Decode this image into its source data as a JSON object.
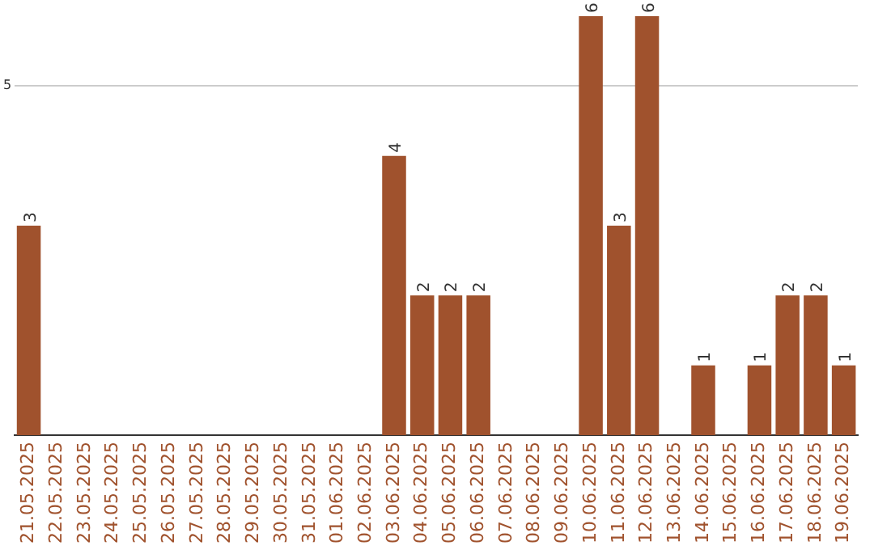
{
  "chart_data": {
    "type": "bar",
    "categories": [
      "21.05.2025",
      "22.05.2025",
      "23.05.2025",
      "24.05.2025",
      "25.05.2025",
      "26.05.2025",
      "27.05.2025",
      "28.05.2025",
      "29.05.2025",
      "30.05.2025",
      "31.05.2025",
      "01.06.2025",
      "02.06.2025",
      "03.06.2025",
      "04.06.2025",
      "05.06.2025",
      "06.06.2025",
      "07.06.2025",
      "08.06.2025",
      "09.06.2025",
      "10.06.2025",
      "11.06.2025",
      "12.06.2025",
      "13.06.2025",
      "14.06.2025",
      "15.06.2025",
      "16.06.2025",
      "17.06.2025",
      "18.06.2025",
      "19.06.2025"
    ],
    "values": [
      3,
      0,
      0,
      0,
      0,
      0,
      0,
      0,
      0,
      0,
      0,
      0,
      0,
      4,
      2,
      2,
      2,
      0,
      0,
      0,
      6,
      3,
      6,
      0,
      1,
      0,
      1,
      2,
      2,
      1
    ],
    "value_labels": [
      "3",
      null,
      null,
      null,
      null,
      null,
      null,
      null,
      null,
      null,
      null,
      null,
      null,
      "4",
      "2",
      "2",
      "2",
      null,
      null,
      null,
      "6",
      "3",
      "6",
      null,
      "1",
      null,
      "1",
      "2",
      "2",
      "1"
    ],
    "color": "#a0522d",
    "ylim": [
      0,
      6
    ],
    "yticks": [
      5
    ],
    "grid": "y",
    "legend": false
  }
}
